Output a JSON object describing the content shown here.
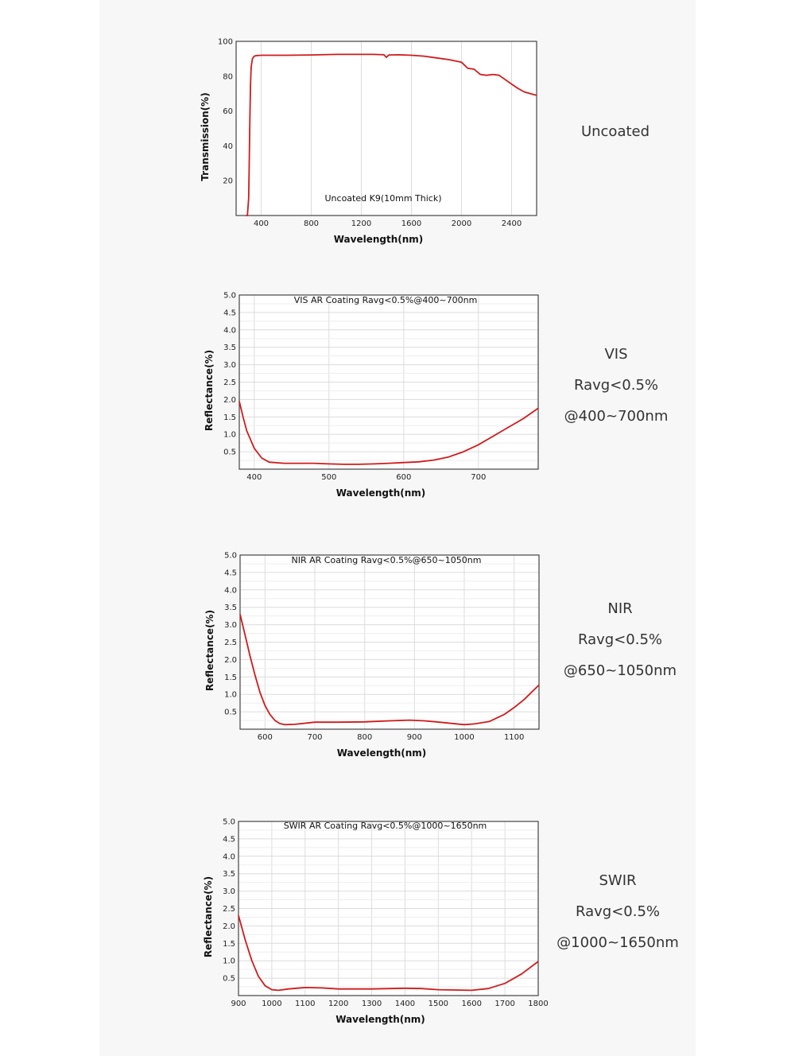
{
  "colors": {
    "curve": "#d11a1a",
    "grid": "#dcdcdc",
    "frame": "#444444",
    "panel": "#f7f7f7"
  },
  "side_labels": [
    {
      "lines": [
        "Uncoated"
      ]
    },
    {
      "lines": [
        "VIS",
        "Ravg<0.5%",
        "@400~700nm"
      ]
    },
    {
      "lines": [
        "NIR",
        "Ravg<0.5%",
        "@650~1050nm"
      ]
    },
    {
      "lines": [
        "SWIR",
        "Ravg<0.5%",
        "@1000~1650nm"
      ]
    }
  ],
  "chart_data": [
    {
      "type": "line",
      "annotation": "Uncoated K9(10mm Thick)",
      "xlabel": "Wavelength(nm)",
      "ylabel": "Transmission(%)",
      "xlim": [
        200,
        2600
      ],
      "ylim": [
        0,
        100
      ],
      "xticks": [
        "400",
        "800",
        "1200",
        "1600",
        "2000",
        "2400"
      ],
      "yticks": [
        "20",
        "40",
        "60",
        "80",
        "100"
      ],
      "grid": "vertical",
      "x": [
        280,
        290,
        300,
        305,
        310,
        315,
        320,
        330,
        345,
        360,
        400,
        500,
        600,
        800,
        1000,
        1200,
        1300,
        1380,
        1400,
        1420,
        1500,
        1600,
        1700,
        1800,
        1900,
        2000,
        2050,
        2100,
        2150,
        2200,
        2250,
        2300,
        2350,
        2400,
        2450,
        2500,
        2550,
        2600
      ],
      "y": [
        0,
        0,
        10,
        30,
        55,
        75,
        85,
        90,
        91.5,
        91.8,
        92,
        92,
        92,
        92.2,
        92.5,
        92.5,
        92.5,
        92.3,
        90.8,
        92.2,
        92.3,
        92,
        91.5,
        90.5,
        89.5,
        88,
        84.5,
        84,
        81,
        80.5,
        81,
        80.5,
        78,
        75.5,
        73,
        71,
        70,
        69
      ]
    },
    {
      "type": "line",
      "annotation": "VIS AR Coating Ravg<0.5%@400~700nm",
      "xlabel": "Wavelength(nm)",
      "ylabel": "Reflectance(%)",
      "xlim": [
        380,
        780
      ],
      "ylim": [
        0,
        5
      ],
      "xticks": [
        "400",
        "500",
        "600",
        "700"
      ],
      "yticks": [
        "0.5",
        "1.0",
        "1.5",
        "2.0",
        "2.5",
        "3.0",
        "3.5",
        "4.0",
        "4.5",
        "5.0"
      ],
      "grid": "both",
      "x": [
        380,
        385,
        390,
        400,
        410,
        420,
        440,
        460,
        480,
        500,
        520,
        540,
        560,
        580,
        600,
        620,
        640,
        660,
        680,
        700,
        720,
        740,
        760,
        780
      ],
      "y": [
        1.95,
        1.5,
        1.1,
        0.6,
        0.32,
        0.2,
        0.17,
        0.17,
        0.17,
        0.15,
        0.14,
        0.14,
        0.15,
        0.17,
        0.19,
        0.21,
        0.26,
        0.35,
        0.5,
        0.7,
        0.95,
        1.2,
        1.45,
        1.75
      ]
    },
    {
      "type": "line",
      "annotation": "NIR AR Coating Ravg<0.5%@650~1050nm",
      "xlabel": "Wavelength(nm)",
      "ylabel": "Reflectance(%)",
      "xlim": [
        550,
        1150
      ],
      "ylim": [
        0,
        5
      ],
      "xticks": [
        "600",
        "700",
        "800",
        "900",
        "1000",
        "1100"
      ],
      "yticks": [
        "0.5",
        "1.0",
        "1.5",
        "2.0",
        "2.5",
        "3.0",
        "3.5",
        "4.0",
        "4.5",
        "5.0"
      ],
      "grid": "both",
      "x": [
        550,
        560,
        570,
        580,
        590,
        600,
        610,
        620,
        630,
        640,
        660,
        700,
        750,
        800,
        850,
        890,
        920,
        950,
        1000,
        1020,
        1050,
        1080,
        1100,
        1120,
        1150
      ],
      "y": [
        3.3,
        2.7,
        2.1,
        1.55,
        1.05,
        0.68,
        0.42,
        0.25,
        0.16,
        0.13,
        0.14,
        0.2,
        0.2,
        0.21,
        0.24,
        0.26,
        0.24,
        0.2,
        0.13,
        0.15,
        0.22,
        0.42,
        0.62,
        0.85,
        1.27
      ]
    },
    {
      "type": "line",
      "annotation": "SWIR AR Coating Ravg<0.5%@1000~1650nm",
      "xlabel": "Wavelength(nm)",
      "ylabel": "Reflectance(%)",
      "xlim": [
        900,
        1800
      ],
      "ylim": [
        0,
        5
      ],
      "xticks": [
        "900",
        "1000",
        "1100",
        "1200",
        "1300",
        "1400",
        "1500",
        "1600",
        "1700",
        "1800"
      ],
      "yticks": [
        "0.5",
        "1.0",
        "1.5",
        "2.0",
        "2.5",
        "3.0",
        "3.5",
        "4.0",
        "4.5",
        "5.0"
      ],
      "grid": "both",
      "x": [
        900,
        920,
        940,
        960,
        980,
        1000,
        1020,
        1050,
        1100,
        1150,
        1200,
        1300,
        1400,
        1450,
        1500,
        1600,
        1650,
        1700,
        1750,
        1800
      ],
      "y": [
        2.3,
        1.6,
        1.0,
        0.55,
        0.28,
        0.17,
        0.15,
        0.19,
        0.23,
        0.22,
        0.19,
        0.19,
        0.21,
        0.2,
        0.17,
        0.15,
        0.2,
        0.35,
        0.62,
        0.98
      ]
    }
  ]
}
